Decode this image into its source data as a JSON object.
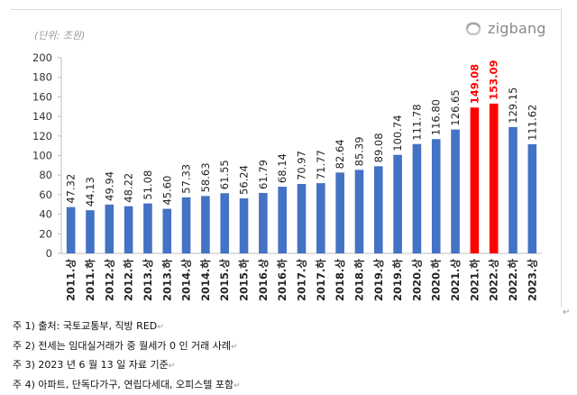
{
  "chart_data": {
    "type": "bar",
    "unit_label": "(단위: 조원)",
    "brand": "zigbang",
    "yticks": [
      "0",
      "20",
      "40",
      "60",
      "80",
      "100",
      "120",
      "140",
      "160",
      "180",
      "200"
    ],
    "ylim": [
      0,
      200
    ],
    "grid": false,
    "categories": [
      "2011.상",
      "2011.하",
      "2012.상",
      "2012.하",
      "2013.상",
      "2013.하",
      "2014.상",
      "2014.하",
      "2015.상",
      "2015.하",
      "2016.상",
      "2016.하",
      "2017.상",
      "2017.하",
      "2018.상",
      "2018.하",
      "2019.상",
      "2019.하",
      "2020.상",
      "2020.하",
      "2021.상",
      "2021.하",
      "2022.상",
      "2022.하",
      "2023.상"
    ],
    "values": [
      47.32,
      44.13,
      49.94,
      48.22,
      51.08,
      45.6,
      57.33,
      58.63,
      61.55,
      56.24,
      61.79,
      68.14,
      70.97,
      71.77,
      82.64,
      85.39,
      89.08,
      100.74,
      111.78,
      116.8,
      126.65,
      149.08,
      153.09,
      129.15,
      111.62
    ],
    "value_labels": [
      "47.32",
      "44.13",
      "49.94",
      "48.22",
      "51.08",
      "45.60",
      "57.33",
      "58.63",
      "61.55",
      "56.24",
      "61.79",
      "68.14",
      "70.97",
      "71.77",
      "82.64",
      "85.39",
      "89.08",
      "100.74",
      "111.78",
      "116.80",
      "126.65",
      "149.08",
      "153.09",
      "129.15",
      "111.62"
    ],
    "highlight_indices": [
      21,
      22
    ],
    "colors": {
      "bar": "#4472c4",
      "highlight": "#ff0000",
      "label": "#222222",
      "highlight_label": "#ff0000",
      "axis": "#bfbfbf"
    }
  },
  "notes": [
    "주 1) 출처: 국토교통부, 직방 RED",
    "주 2) 전세는 임대실거래가 중 월세가 0 인 거래 사례",
    "주 3) 2023 년 6 월 13 일 자료 기준",
    "주 4) 아파트, 단독다가구, 연립다세대, 오피스텔 포함"
  ],
  "return_mark": "↵"
}
